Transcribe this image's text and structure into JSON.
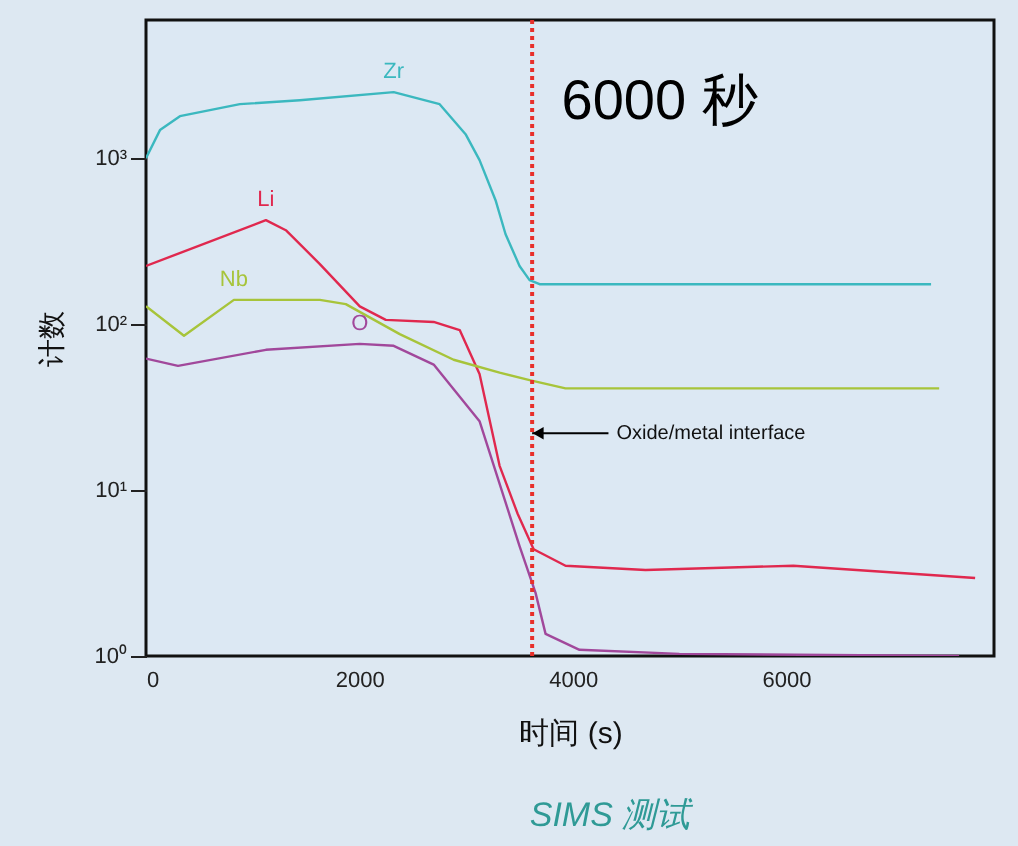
{
  "chart_data": {
    "type": "line",
    "title": "6000 秒",
    "xlabel": "时间 (s)",
    "ylabel": "计数",
    "xlim": [
      0,
      7950
    ],
    "xticks": [
      0,
      2000,
      4000,
      6000
    ],
    "ylim": [
      1,
      6800
    ],
    "yticks": [
      {
        "value": 1,
        "label": "10⁰"
      },
      {
        "value": 10,
        "label": "10¹"
      },
      {
        "value": 100,
        "label": "10²"
      },
      {
        "value": 1000,
        "label": "10³"
      }
    ],
    "log": "y",
    "grid": false,
    "legend": false,
    "marker": "none",
    "line_style": "solid",
    "series": [
      {
        "name": "Zr",
        "color": "#3bb8bf",
        "x": [
          0,
          131,
          318,
          880,
          1442,
          2322,
          2753,
          2996,
          3127,
          3277,
          3371,
          3502,
          3596,
          3690,
          7360
        ],
        "values": [
          1000,
          1476,
          1790,
          2115,
          2235,
          2500,
          2115,
          1395,
          973,
          558,
          348,
          224,
          184,
          174,
          174
        ]
      },
      {
        "name": "Li",
        "color": "#e0284e",
        "x": [
          0,
          1124,
          1311,
          1630,
          2004,
          2248,
          2697,
          2941,
          3127,
          3315,
          3484,
          3634,
          3933,
          4683,
          6069,
          7773
        ],
        "values": [
          224,
          423,
          368,
          230,
          128,
          106,
          103,
          92,
          50,
          14,
          7.2,
          4.4,
          3.5,
          3.3,
          3.5,
          2.95
        ]
      },
      {
        "name": "Nb",
        "color": "#a7c43a",
        "x": [
          0,
          356,
          824,
          1630,
          1873,
          2379,
          2884,
          3315,
          3596,
          3933,
          7436
        ],
        "values": [
          128,
          85,
          140,
          140,
          132,
          87,
          61,
          51,
          46,
          41,
          41
        ]
      },
      {
        "name": "O",
        "color": "#a1489b",
        "x": [
          0,
          300,
          1124,
          2004,
          2322,
          2697,
          3127,
          3502,
          3652,
          3746,
          4064,
          5000,
          7623
        ],
        "values": [
          62,
          56,
          70,
          76,
          74,
          57,
          26,
          4.6,
          2.4,
          1.36,
          1.09,
          1.03,
          1.0
        ]
      }
    ],
    "ref_lines": [
      {
        "axis": "x",
        "value": 3620,
        "color": "#e8302a",
        "line_style": "dotted"
      }
    ],
    "annotations": [
      {
        "text": "Oxide/metal interface",
        "x": 3620,
        "y": 22
      },
      "SIMS 测试"
    ]
  }
}
